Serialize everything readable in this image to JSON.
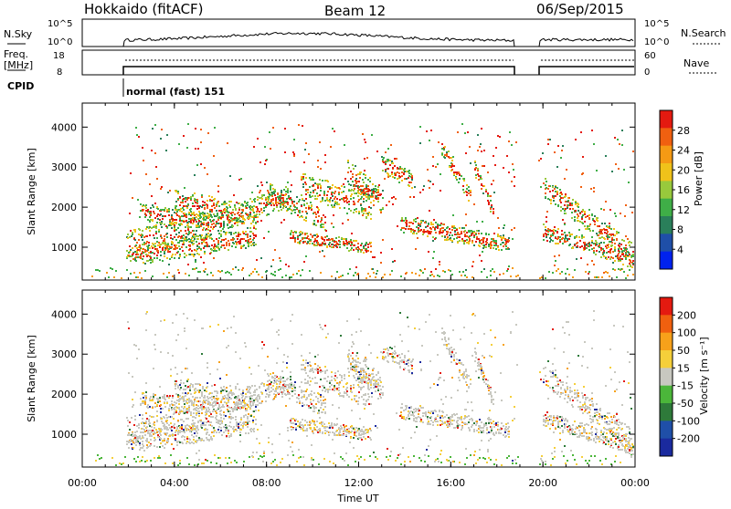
{
  "header": {
    "station": "Hokkaido (fitACF)",
    "beam": "Beam 12",
    "date": "06/Sep/2015"
  },
  "top_panel": {
    "left_label": "N.Sky",
    "left_ticks": [
      "10^5",
      "10^0"
    ],
    "right_ticks": [
      "10^5",
      "10^0"
    ],
    "right_label": "N.Search"
  },
  "freq_panel": {
    "left_label_line1": "Freq.",
    "left_label_line2": "[MHz]",
    "left_ticks": [
      "18",
      "8"
    ],
    "right_ticks": [
      "60",
      "0"
    ],
    "right_label": "Nave"
  },
  "cpid": {
    "label": "CPID",
    "mode": "normal (fast) 151"
  },
  "chart_data": [
    {
      "type": "heatmap",
      "name": "Power",
      "ylabel": "Slant Range [km]",
      "yticks": [
        "4000",
        "3000",
        "2000",
        "1000"
      ],
      "colorbar_label": "Power [dB]",
      "colorbar_ticks": [
        "28",
        "24",
        "20",
        "16",
        "12",
        "8",
        "4"
      ],
      "colors": [
        "#0022ee",
        "#1f4fa8",
        "#2a7f5a",
        "#3fae47",
        "#98c93c",
        "#f0c21a",
        "#f59a14",
        "#f06010",
        "#e41a10"
      ]
    },
    {
      "type": "heatmap",
      "name": "Velocity",
      "ylabel": "Slant Range [km]",
      "yticks": [
        "4000",
        "3000",
        "2000",
        "1000"
      ],
      "colorbar_label": "Velocity [m s⁻¹]",
      "colorbar_ticks": [
        "200",
        "100",
        "50",
        "15",
        "-15",
        "-50",
        "-100",
        "-200"
      ],
      "colors": [
        "#1a2a9e",
        "#1f4fa8",
        "#2e7a3a",
        "#4bb63a",
        "#c8c8c0",
        "#f5cf3a",
        "#f7a11a",
        "#f0600f",
        "#e41a10"
      ]
    }
  ],
  "time_axis": {
    "label": "Time UT",
    "ticks": [
      "00:00",
      "04:00",
      "08:00",
      "12:00",
      "16:00",
      "20:00",
      "00:00"
    ]
  }
}
